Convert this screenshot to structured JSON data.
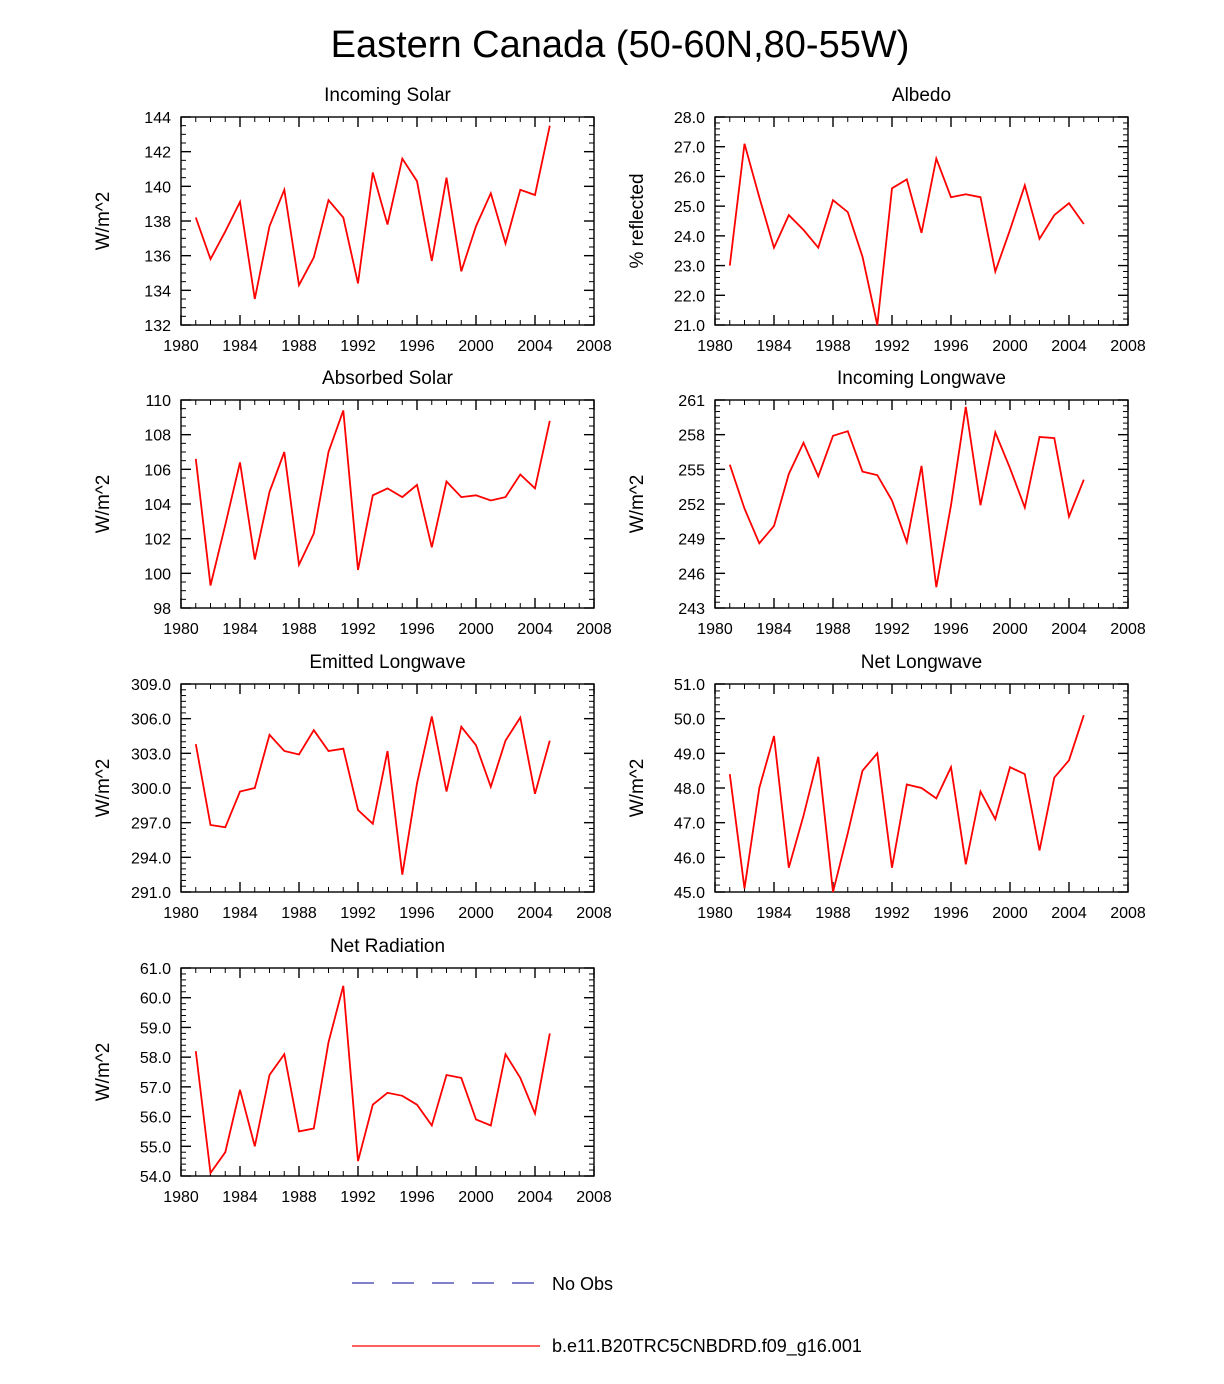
{
  "title": "Eastern Canada (50-60N,80-55W)",
  "colors": {
    "model_line": "#ff0000",
    "obs_line": "#3333aa",
    "axis": "#000000"
  },
  "legend": {
    "entries": [
      {
        "label": "No Obs",
        "style": "dashed",
        "color": "#3333aa"
      },
      {
        "label": "b.e11.B20TRC5CNBDRD.f09_g16.001",
        "style": "solid",
        "color": "#ff0000"
      }
    ]
  },
  "chart_data": [
    {
      "type": "line",
      "title": "Incoming Solar",
      "ylabel": "W/m^2",
      "xlim": [
        1980,
        2008
      ],
      "xticks": [
        1980,
        1984,
        1988,
        1992,
        1996,
        2000,
        2004,
        2008
      ],
      "xtick_labels": [
        "1980",
        "1984",
        "1988",
        "1992",
        "1996",
        "2000",
        "2004",
        "2008"
      ],
      "ylim": [
        132,
        144
      ],
      "yticks": [
        132,
        134,
        136,
        138,
        140,
        142,
        144
      ],
      "ytick_labels": [
        "132",
        "134",
        "136",
        "138",
        "140",
        "142",
        "144"
      ],
      "yminor_step": 0.5,
      "series": [
        {
          "name": "b.e11.B20TRC5CNBDRD.f09_g16.001",
          "x": [
            1981,
            1982,
            1983,
            1984,
            1985,
            1986,
            1987,
            1988,
            1989,
            1990,
            1991,
            1992,
            1993,
            1994,
            1995,
            1996,
            1997,
            1998,
            1999,
            2000,
            2001,
            2002,
            2003,
            2004,
            2005
          ],
          "values": [
            138.2,
            135.8,
            137.4,
            139.1,
            133.5,
            137.7,
            139.8,
            134.3,
            135.9,
            139.2,
            138.2,
            134.4,
            140.8,
            137.8,
            141.6,
            140.3,
            135.7,
            140.5,
            135.1,
            137.7,
            139.6,
            136.7,
            139.8,
            139.5,
            143.5
          ]
        }
      ]
    },
    {
      "type": "line",
      "title": "Albedo",
      "ylabel": "% reflected",
      "xlim": [
        1980,
        2008
      ],
      "xticks": [
        1980,
        1984,
        1988,
        1992,
        1996,
        2000,
        2004,
        2008
      ],
      "xtick_labels": [
        "1980",
        "1984",
        "1988",
        "1992",
        "1996",
        "2000",
        "2004",
        "2008"
      ],
      "ylim": [
        21.0,
        28.0
      ],
      "yticks": [
        21,
        22,
        23,
        24,
        25,
        26,
        27,
        28
      ],
      "ytick_labels": [
        "21.0",
        "22.0",
        "23.0",
        "24.0",
        "25.0",
        "26.0",
        "27.0",
        "28.0"
      ],
      "yminor_step": 0.2,
      "series": [
        {
          "name": "b.e11.B20TRC5CNBDRD.f09_g16.001",
          "x": [
            1981,
            1982,
            1983,
            1984,
            1985,
            1986,
            1987,
            1988,
            1989,
            1990,
            1991,
            1992,
            1993,
            1994,
            1995,
            1996,
            1997,
            1998,
            1999,
            2000,
            2001,
            2002,
            2003,
            2004,
            2005
          ],
          "values": [
            23.0,
            27.1,
            25.3,
            23.6,
            24.7,
            24.2,
            23.6,
            25.2,
            24.8,
            23.3,
            21.0,
            25.6,
            25.9,
            24.1,
            26.6,
            25.3,
            25.4,
            25.3,
            22.8,
            24.2,
            25.7,
            23.9,
            24.7,
            25.1,
            24.4
          ]
        }
      ]
    },
    {
      "type": "line",
      "title": "Absorbed Solar",
      "ylabel": "W/m^2",
      "xlim": [
        1980,
        2008
      ],
      "xticks": [
        1980,
        1984,
        1988,
        1992,
        1996,
        2000,
        2004,
        2008
      ],
      "xtick_labels": [
        "1980",
        "1984",
        "1988",
        "1992",
        "1996",
        "2000",
        "2004",
        "2008"
      ],
      "ylim": [
        98,
        110
      ],
      "yticks": [
        98,
        100,
        102,
        104,
        106,
        108,
        110
      ],
      "ytick_labels": [
        "98",
        "100",
        "102",
        "104",
        "106",
        "108",
        "110"
      ],
      "yminor_step": 0.5,
      "series": [
        {
          "name": "b.e11.B20TRC5CNBDRD.f09_g16.001",
          "x": [
            1981,
            1982,
            1983,
            1984,
            1985,
            1986,
            1987,
            1988,
            1989,
            1990,
            1991,
            1992,
            1993,
            1994,
            1995,
            1996,
            1997,
            1998,
            1999,
            2000,
            2001,
            2002,
            2003,
            2004,
            2005
          ],
          "values": [
            106.6,
            99.3,
            102.8,
            106.4,
            100.8,
            104.7,
            107.0,
            100.5,
            102.3,
            107.0,
            109.4,
            100.2,
            104.5,
            104.9,
            104.4,
            105.1,
            101.5,
            105.3,
            104.4,
            104.5,
            104.2,
            104.4,
            105.7,
            104.9,
            108.8
          ]
        }
      ]
    },
    {
      "type": "line",
      "title": "Incoming Longwave",
      "ylabel": "W/m^2",
      "xlim": [
        1980,
        2008
      ],
      "xticks": [
        1980,
        1984,
        1988,
        1992,
        1996,
        2000,
        2004,
        2008
      ],
      "xtick_labels": [
        "1980",
        "1984",
        "1988",
        "1992",
        "1996",
        "2000",
        "2004",
        "2008"
      ],
      "ylim": [
        243,
        261
      ],
      "yticks": [
        243,
        246,
        249,
        252,
        255,
        258,
        261
      ],
      "ytick_labels": [
        "243",
        "246",
        "249",
        "252",
        "255",
        "258",
        "261"
      ],
      "yminor_step": 0.5,
      "series": [
        {
          "name": "b.e11.B20TRC5CNBDRD.f09_g16.001",
          "x": [
            1981,
            1982,
            1983,
            1984,
            1985,
            1986,
            1987,
            1988,
            1989,
            1990,
            1991,
            1992,
            1993,
            1994,
            1995,
            1996,
            1997,
            1998,
            1999,
            2000,
            2001,
            2002,
            2003,
            2004,
            2005
          ],
          "values": [
            255.4,
            251.6,
            248.6,
            250.1,
            254.6,
            257.3,
            254.4,
            257.9,
            258.3,
            254.8,
            254.5,
            252.3,
            248.7,
            255.3,
            244.8,
            251.9,
            260.4,
            251.9,
            258.2,
            255.1,
            251.7,
            257.8,
            257.7,
            250.9,
            254.1
          ]
        }
      ]
    },
    {
      "type": "line",
      "title": "Emitted Longwave",
      "ylabel": "W/m^2",
      "xlim": [
        1980,
        2008
      ],
      "xticks": [
        1980,
        1984,
        1988,
        1992,
        1996,
        2000,
        2004,
        2008
      ],
      "xtick_labels": [
        "1980",
        "1984",
        "1988",
        "1992",
        "1996",
        "2000",
        "2004",
        "2008"
      ],
      "ylim": [
        291.0,
        309.0
      ],
      "yticks": [
        291,
        294,
        297,
        300,
        303,
        306,
        309
      ],
      "ytick_labels": [
        "291.0",
        "294.0",
        "297.0",
        "300.0",
        "303.0",
        "306.0",
        "309.0"
      ],
      "yminor_step": 0.5,
      "series": [
        {
          "name": "b.e11.B20TRC5CNBDRD.f09_g16.001",
          "x": [
            1981,
            1982,
            1983,
            1984,
            1985,
            1986,
            1987,
            1988,
            1989,
            1990,
            1991,
            1992,
            1993,
            1994,
            1995,
            1996,
            1997,
            1998,
            1999,
            2000,
            2001,
            2002,
            2003,
            2004,
            2005
          ],
          "values": [
            303.8,
            296.8,
            296.6,
            299.7,
            300.0,
            304.6,
            303.2,
            302.9,
            305.0,
            303.2,
            303.4,
            298.1,
            296.9,
            303.2,
            292.5,
            300.4,
            306.2,
            299.7,
            305.3,
            303.7,
            300.1,
            304.1,
            306.1,
            299.5,
            304.1
          ]
        }
      ]
    },
    {
      "type": "line",
      "title": "Net Longwave",
      "ylabel": "W/m^2",
      "xlim": [
        1980,
        2008
      ],
      "xticks": [
        1980,
        1984,
        1988,
        1992,
        1996,
        2000,
        2004,
        2008
      ],
      "xtick_labels": [
        "1980",
        "1984",
        "1988",
        "1992",
        "1996",
        "2000",
        "2004",
        "2008"
      ],
      "ylim": [
        45.0,
        51.0
      ],
      "yticks": [
        45,
        46,
        47,
        48,
        49,
        50,
        51
      ],
      "ytick_labels": [
        "45.0",
        "46.0",
        "47.0",
        "48.0",
        "49.0",
        "50.0",
        "51.0"
      ],
      "yminor_step": 0.2,
      "series": [
        {
          "name": "b.e11.B20TRC5CNBDRD.f09_g16.001",
          "x": [
            1981,
            1982,
            1983,
            1984,
            1985,
            1986,
            1987,
            1988,
            1989,
            1990,
            1991,
            1992,
            1993,
            1994,
            1995,
            1996,
            1997,
            1998,
            1999,
            2000,
            2001,
            2002,
            2003,
            2004,
            2005
          ],
          "values": [
            48.4,
            45.1,
            48.0,
            49.5,
            45.7,
            47.2,
            48.9,
            45.0,
            46.7,
            48.5,
            49.0,
            45.7,
            48.1,
            48.0,
            47.7,
            48.6,
            45.8,
            47.9,
            47.1,
            48.6,
            48.4,
            46.2,
            48.3,
            48.8,
            50.1
          ]
        }
      ]
    },
    {
      "type": "line",
      "title": "Net Radiation",
      "ylabel": "W/m^2",
      "xlim": [
        1980,
        2008
      ],
      "xticks": [
        1980,
        1984,
        1988,
        1992,
        1996,
        2000,
        2004,
        2008
      ],
      "xtick_labels": [
        "1980",
        "1984",
        "1988",
        "1992",
        "1996",
        "2000",
        "2004",
        "2008"
      ],
      "ylim": [
        54.0,
        61.0
      ],
      "yticks": [
        54,
        55,
        56,
        57,
        58,
        59,
        60,
        61
      ],
      "ytick_labels": [
        "54.0",
        "55.0",
        "56.0",
        "57.0",
        "58.0",
        "59.0",
        "60.0",
        "61.0"
      ],
      "yminor_step": 0.2,
      "series": [
        {
          "name": "b.e11.B20TRC5CNBDRD.f09_g16.001",
          "x": [
            1981,
            1982,
            1983,
            1984,
            1985,
            1986,
            1987,
            1988,
            1989,
            1990,
            1991,
            1992,
            1993,
            1994,
            1995,
            1996,
            1997,
            1998,
            1999,
            2000,
            2001,
            2002,
            2003,
            2004,
            2005
          ],
          "values": [
            58.2,
            54.1,
            54.8,
            56.9,
            55.0,
            57.4,
            58.1,
            55.5,
            55.6,
            58.5,
            60.4,
            54.5,
            56.4,
            56.8,
            56.7,
            56.4,
            55.7,
            57.4,
            57.3,
            55.9,
            55.7,
            58.1,
            57.3,
            56.1,
            58.8
          ]
        }
      ]
    }
  ]
}
